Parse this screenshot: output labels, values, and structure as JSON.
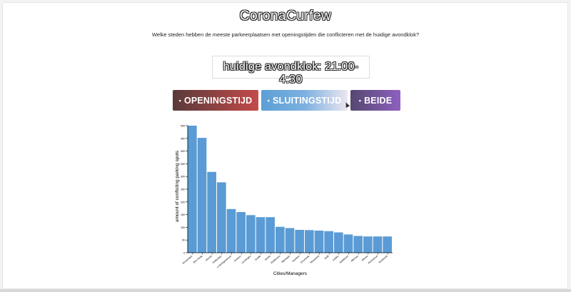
{
  "app": {
    "title": "CoronaCurfew",
    "question": "Welke steden hebben de meeste parkeerplaatsen met openingstijden die conflicteren met de huidige avondklok?",
    "curfew_label": "huidige avondklok: 21:00-4:30"
  },
  "buttons": {
    "opening": "OPENINGSTIJD",
    "closing": "SLUITINGSTIJD",
    "both": "BEIDE",
    "bullet": "•"
  },
  "colors": {
    "bar": "#5b9bd5",
    "opening_start": "#5a3a3a",
    "opening_end": "#c34a4a",
    "both_start": "#554870",
    "both_end": "#8e5fc0"
  },
  "chart_data": {
    "type": "bar",
    "xlabel": "Cities/Managers",
    "ylabel": "amount of conflicting parking spots",
    "ylim": [
      0,
      500
    ],
    "yticks": [
      0,
      50,
      100,
      150,
      200,
      250,
      300,
      350,
      400,
      450,
      500
    ],
    "categories": [
      "Amsterdam",
      "Den Haag",
      "Utrecht",
      "Rotterdam",
      "s-Hertogenbosch",
      "Arnhem",
      "Groningen",
      "Zwolle",
      "Breda",
      "Eindhoven",
      "Nijmegen",
      "Haarlem",
      "Enschede",
      "Maastricht",
      "Delft",
      "Leiden",
      "Apeldoorn",
      "Alkmaar",
      "Almere",
      "Amersfoort",
      "Dordrecht"
    ],
    "values": [
      500,
      452,
      318,
      277,
      172,
      160,
      148,
      140,
      140,
      102,
      97,
      90,
      89,
      87,
      85,
      80,
      72,
      66,
      64,
      64,
      64
    ]
  }
}
